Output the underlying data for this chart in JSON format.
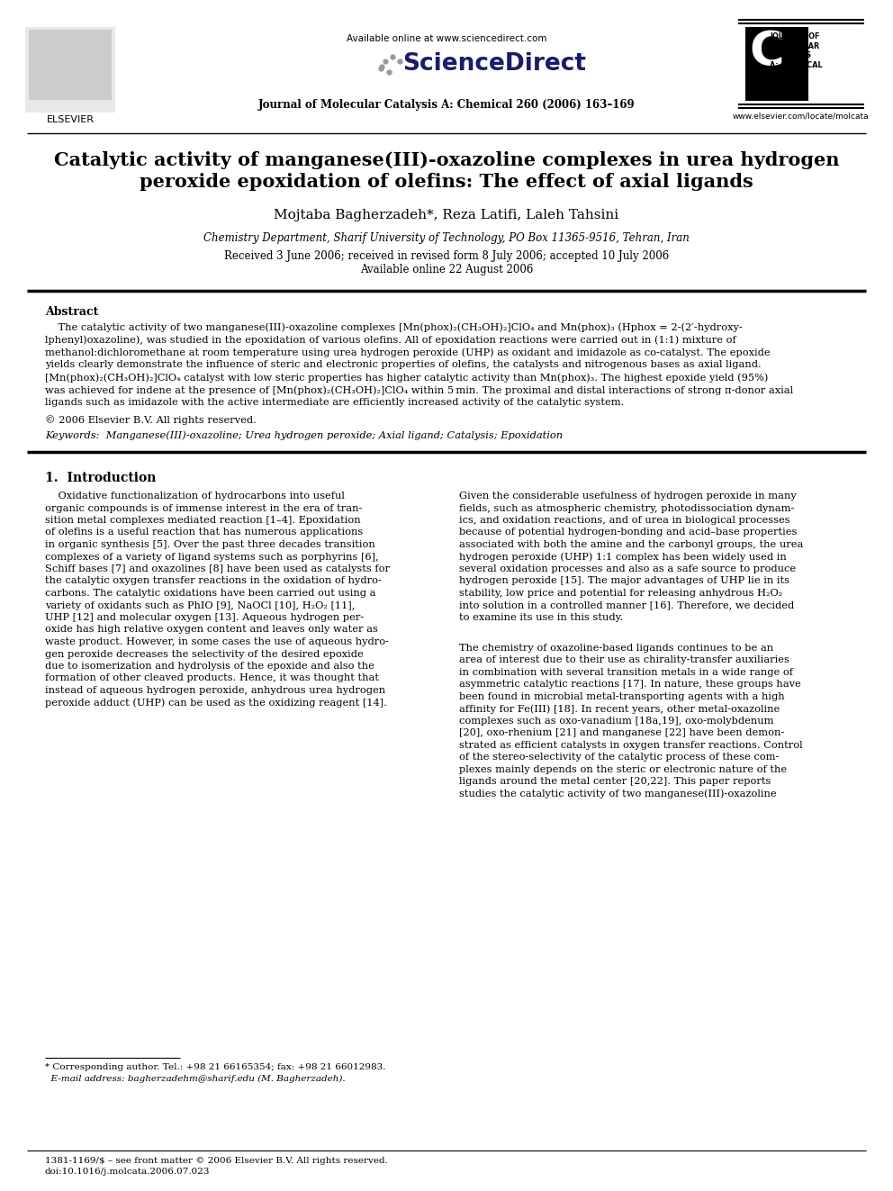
{
  "page_bg": "#ffffff",
  "available_online": "Available online at www.sciencedirect.com",
  "journal_line": "Journal of Molecular Catalysis A: Chemical 260 (2006) 163–169",
  "website": "www.elsevier.com/locate/molcata",
  "title_line1": "Catalytic activity of manganese(III)-oxazoline complexes in urea hydrogen",
  "title_line2": "peroxide epoxidation of olefins: The effect of axial ligands",
  "authors": "Mojtaba Bagherzadeh*, Reza Latifi, Laleh Tahsini",
  "affiliation": "Chemistry Department, Sharif University of Technology, PO Box 11365-9516, Tehran, Iran",
  "received": "Received 3 June 2006; received in revised form 8 July 2006; accepted 10 July 2006",
  "available": "Available online 22 August 2006",
  "abs_line1": "    The catalytic activity of two manganese(III)-oxazoline complexes [Mn(phox)₂(CH₃OH)₂]ClO₄ and Mn(phox)₃ (Hphox = 2-(2′-hydroxy-",
  "abs_line2": "lphenyl)oxazoline), was studied in the epoxidation of various olefins. All of epoxidation reactions were carried out in (1:1) mixture of",
  "abs_line3": "methanol:dichloromethane at room temperature using urea hydrogen peroxide (UHP) as oxidant and imidazole as co-catalyst. The epoxide",
  "abs_line4": "yields clearly demonstrate the influence of steric and electronic properties of olefins, the catalysts and nitrogenous bases as axial ligand.",
  "abs_line5": "[Mn(phox)₂(CH₃OH)₂]ClO₄ catalyst with low steric properties has higher catalytic activity than Mn(phox)₃. The highest epoxide yield (95%)",
  "abs_line6": "was achieved for indene at the presence of [Mn(phox)₂(CH₃OH)₂]ClO₄ within 5 min. The proximal and distal interactions of strong π-donor axial",
  "abs_line7": "ligands such as imidazole with the active intermediate are efficiently increased activity of the catalytic system.",
  "copyright": "© 2006 Elsevier B.V. All rights reserved.",
  "keywords": "Keywords:  Manganese(III)-oxazoline; Urea hydrogen peroxide; Axial ligand; Catalysis; Epoxidation",
  "sec1_title": "1.  Introduction",
  "left_col": [
    "    Oxidative functionalization of hydrocarbons into useful",
    "organic compounds is of immense interest in the era of tran-",
    "sition metal complexes mediated reaction [1–4]. Epoxidation",
    "of olefins is a useful reaction that has numerous applications",
    "in organic synthesis [5]. Over the past three decades transition",
    "complexes of a variety of ligand systems such as porphyrins [6],",
    "Schiff bases [7] and oxazolines [8] have been used as catalysts for",
    "the catalytic oxygen transfer reactions in the oxidation of hydro-",
    "carbons. The catalytic oxidations have been carried out using a",
    "variety of oxidants such as PhIO [9], NaOCl [10], H₂O₂ [11],",
    "UHP [12] and molecular oxygen [13]. Aqueous hydrogen per-",
    "oxide has high relative oxygen content and leaves only water as",
    "waste product. However, in some cases the use of aqueous hydro-",
    "gen peroxide decreases the selectivity of the desired epoxide",
    "due to isomerization and hydrolysis of the epoxide and also the",
    "formation of other cleaved products. Hence, it was thought that",
    "instead of aqueous hydrogen peroxide, anhydrous urea hydrogen",
    "peroxide adduct (UHP) can be used as the oxidizing reagent [14]."
  ],
  "right_col_p1": [
    "Given the considerable usefulness of hydrogen peroxide in many",
    "fields, such as atmospheric chemistry, photodissociation dynam-",
    "ics, and oxidation reactions, and of urea in biological processes",
    "because of potential hydrogen-bonding and acid–base properties",
    "associated with both the amine and the carbonyl groups, the urea",
    "hydrogen peroxide (UHP) 1:1 complex has been widely used in",
    "several oxidation processes and also as a safe source to produce",
    "hydrogen peroxide [15]. The major advantages of UHP lie in its",
    "stability, low price and potential for releasing anhydrous H₂O₂",
    "into solution in a controlled manner [16]. Therefore, we decided",
    "to examine its use in this study."
  ],
  "right_col_p2": [
    "The chemistry of oxazoline-based ligands continues to be an",
    "area of interest due to their use as chirality-transfer auxiliaries",
    "in combination with several transition metals in a wide range of",
    "asymmetric catalytic reactions [17]. In nature, these groups have",
    "been found in microbial metal-transporting agents with a high",
    "affinity for Fe(III) [18]. In recent years, other metal-oxazoline",
    "complexes such as oxo-vanadium [18a,19], oxo-molybdenum",
    "[20], oxo-rhenium [21] and manganese [22] have been demon-",
    "strated as efficient catalysts in oxygen transfer reactions. Control",
    "of the stereo-selectivity of the catalytic process of these com-",
    "plexes mainly depends on the steric or electronic nature of the",
    "ligands around the metal center [20,22]. This paper reports",
    "studies the catalytic activity of two manganese(III)-oxazoline"
  ],
  "footnote1": "* Corresponding author. Tel.: +98 21 66165354; fax: +98 21 66012983.",
  "footnote2": "  E-mail address: bagherzadehm@sharif.edu (M. Bagherzadeh).",
  "footer1": "1381-1169/$ – see front matter © 2006 Elsevier B.V. All rights reserved.",
  "footer2": "doi:10.1016/j.molcata.2006.07.023"
}
